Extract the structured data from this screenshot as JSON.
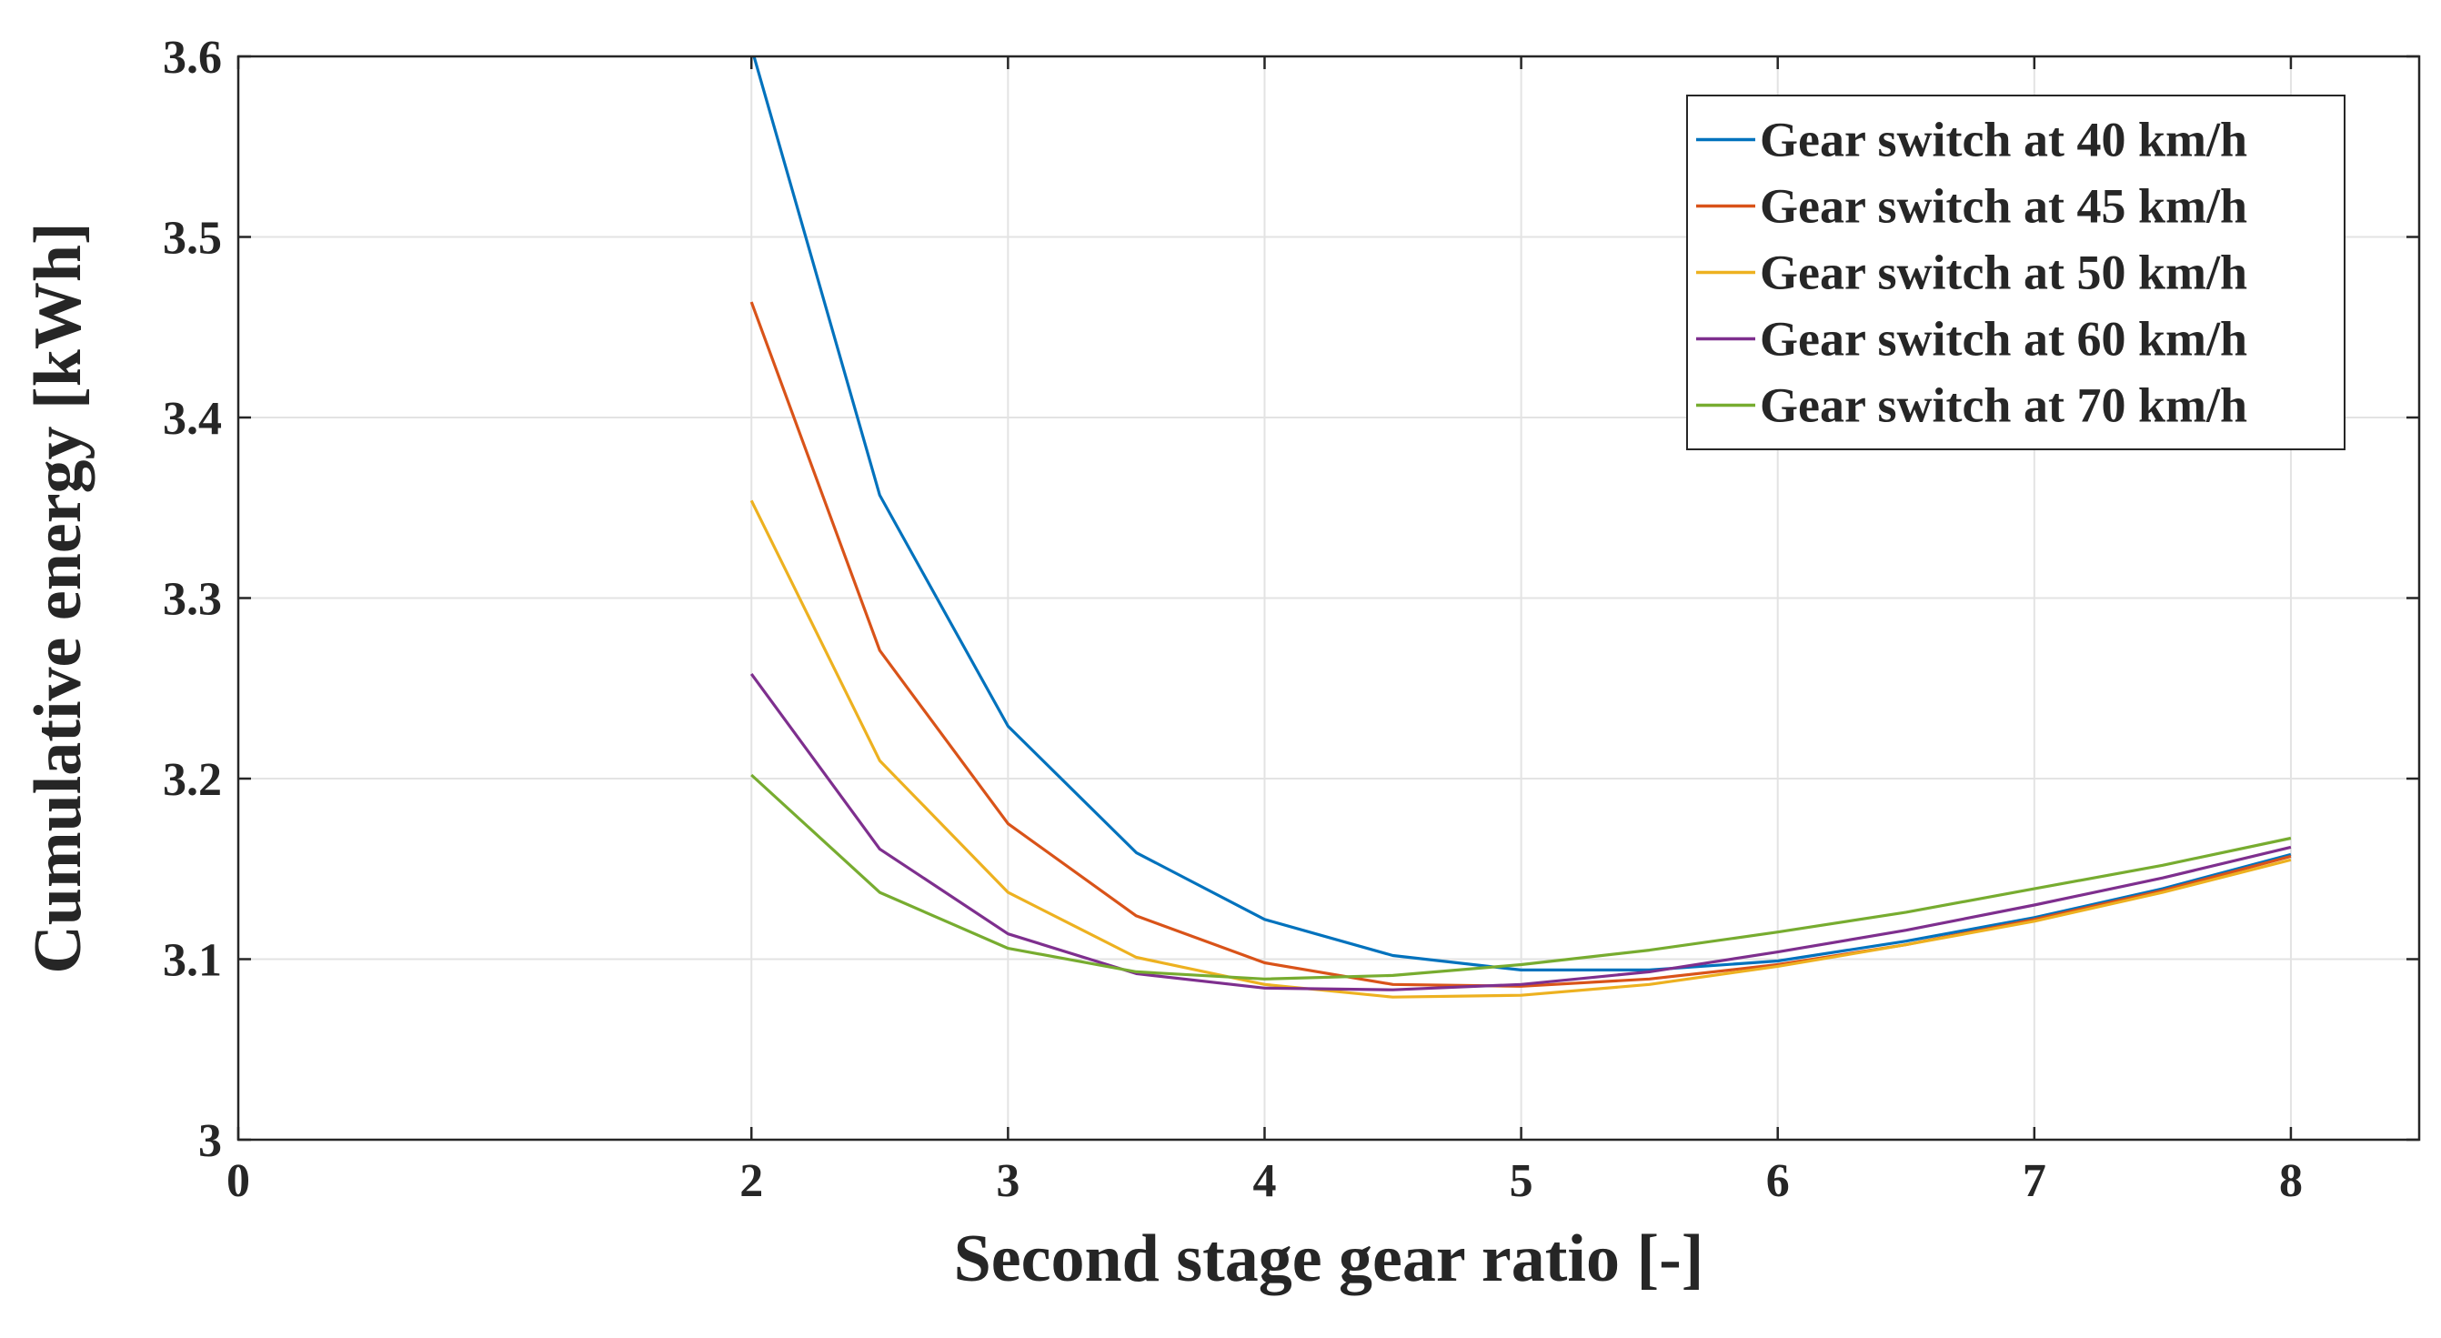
{
  "chart_data": {
    "type": "line",
    "title": "",
    "xlabel": "Second stage gear ratio [-]",
    "ylabel": "Cumulative energy [kWh]",
    "xlim": [
      0,
      8.5
    ],
    "ylim": [
      3.0,
      3.6
    ],
    "xticks": [
      0,
      2,
      3,
      4,
      5,
      6,
      7,
      8
    ],
    "xtick_labels": [
      "0",
      "2",
      "3",
      "4",
      "5",
      "6",
      "7",
      "8"
    ],
    "yticks": [
      3.0,
      3.1,
      3.2,
      3.3,
      3.4,
      3.5,
      3.6
    ],
    "ytick_labels": [
      "3",
      "3.1",
      "3.2",
      "3.3",
      "3.4",
      "3.5",
      "3.6"
    ],
    "grid": true,
    "legend_position": "top-right",
    "x": [
      2,
      2.5,
      3,
      3.5,
      4,
      4.5,
      5,
      5.5,
      6,
      6.5,
      7,
      7.5,
      8
    ],
    "series": [
      {
        "name": "Gear switch at 40 km/h",
        "color": "#0072BD",
        "values": [
          3.605,
          3.357,
          3.229,
          3.159,
          3.122,
          3.102,
          3.094,
          3.094,
          3.099,
          3.11,
          3.123,
          3.139,
          3.158
        ]
      },
      {
        "name": "Gear switch at 45 km/h",
        "color": "#D95319",
        "values": [
          3.464,
          3.271,
          3.175,
          3.124,
          3.098,
          3.086,
          3.085,
          3.089,
          3.097,
          3.108,
          3.122,
          3.138,
          3.157
        ]
      },
      {
        "name": "Gear switch at 50 km/h",
        "color": "#EDB120",
        "values": [
          3.354,
          3.21,
          3.137,
          3.101,
          3.086,
          3.079,
          3.08,
          3.086,
          3.096,
          3.108,
          3.121,
          3.137,
          3.155
        ]
      },
      {
        "name": "Gear switch at 60 km/h",
        "color": "#7E2F8E",
        "values": [
          3.258,
          3.161,
          3.114,
          3.092,
          3.084,
          3.083,
          3.086,
          3.093,
          3.104,
          3.116,
          3.13,
          3.145,
          3.162
        ]
      },
      {
        "name": "Gear switch at 70 km/h",
        "color": "#77AC30",
        "values": [
          3.202,
          3.137,
          3.106,
          3.093,
          3.089,
          3.091,
          3.097,
          3.105,
          3.115,
          3.126,
          3.139,
          3.152,
          3.167
        ]
      }
    ]
  }
}
